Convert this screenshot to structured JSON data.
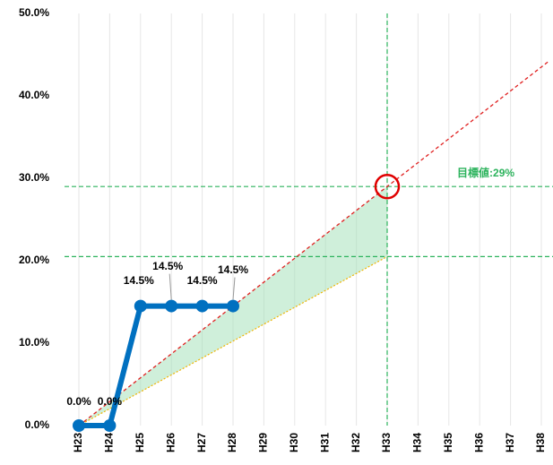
{
  "chart_data": {
    "type": "line",
    "categories": [
      "H23",
      "H24",
      "H25",
      "H26",
      "H27",
      "H28",
      "H29",
      "H30",
      "H31",
      "H32",
      "H33",
      "H34",
      "H35",
      "H36",
      "H37",
      "H38"
    ],
    "series": [
      {
        "color": "#0070c0",
        "values": [
          0,
          0,
          14.5,
          14.5,
          14.5,
          14.5,
          null,
          null,
          null,
          null,
          null,
          null,
          null,
          null,
          null,
          null
        ],
        "value_labels": [
          "0.0%",
          "0.0%",
          "14.5%",
          "14.5%",
          "14.5%",
          "14.5%",
          null,
          null,
          null,
          null,
          null,
          null,
          null,
          null,
          null,
          null
        ]
      }
    ],
    "ylim": [
      0,
      50
    ],
    "yticks": [
      {
        "value": 0,
        "label": "0.0%"
      },
      {
        "value": 10,
        "label": "10.0%"
      },
      {
        "value": 20,
        "label": "20.0%"
      },
      {
        "value": 30,
        "label": "30.0%"
      },
      {
        "value": 40,
        "label": "40.0%"
      },
      {
        "value": 50,
        "label": "50.0%"
      }
    ],
    "target": {
      "label": "目標値",
      "value_label": "29%",
      "value": 29,
      "category_index": 10,
      "lower_value": 20.5
    },
    "grid": true
  }
}
